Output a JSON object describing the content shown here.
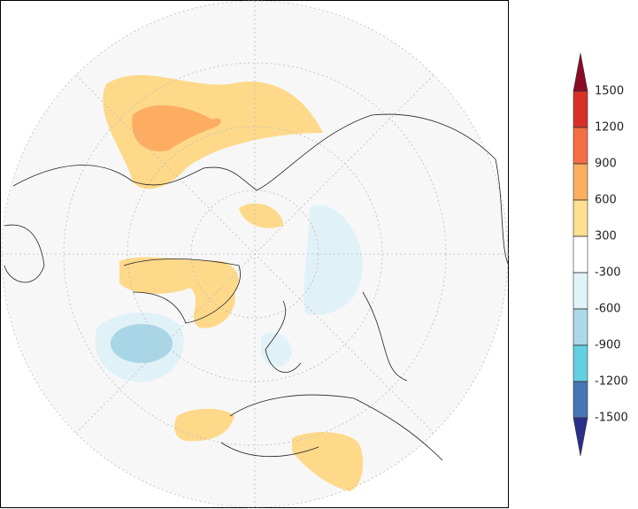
{
  "colorbar": {
    "ticks": [
      1500,
      1200,
      900,
      600,
      300,
      -300,
      -600,
      -900,
      -1200,
      -1500
    ],
    "colors": [
      "#8b0a26",
      "#d73027",
      "#f46d43",
      "#fdae61",
      "#fee090",
      "#ffffff",
      "#e0f3f8",
      "#abd9e9",
      "#62d0e0",
      "#4575b4",
      "#2a2f8a"
    ]
  }
}
